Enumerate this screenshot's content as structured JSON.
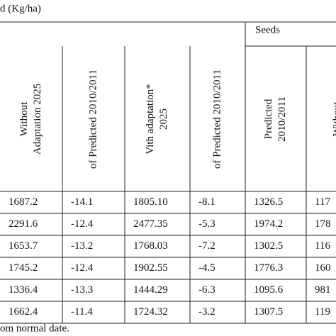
{
  "header": {
    "title": "d (Kg/ha)",
    "group": "Seeds"
  },
  "table": {
    "columns": [
      [
        "Without",
        "Adaptation 2025"
      ],
      [
        "of Predicted 2010/2011"
      ],
      [
        "Vith adaptation*",
        "2025"
      ],
      [
        "of Predicted 2010/2011"
      ],
      [
        "Predicted",
        "2010/2011"
      ],
      [
        "Without"
      ]
    ],
    "rows": [
      [
        "1687.2",
        "-14.1",
        "1805.10",
        "-8.1",
        "1326.5",
        "117"
      ],
      [
        "2291.6",
        "-12.4",
        "2477.35",
        "-5.3",
        "1974.2",
        "178"
      ],
      [
        "1653.7",
        "-13.2",
        "1768.03",
        "-7.2",
        "1302.5",
        "116"
      ],
      [
        "1745.2",
        "-12.4",
        "1902.55",
        "-4.5",
        "1776.3",
        "160"
      ],
      [
        "1336.4",
        "-13.3",
        "1444.29",
        "-6.3",
        "1095.6",
        "981"
      ],
      [
        "1662.4",
        "-11.4",
        "1724.32",
        "-3.2",
        "1307.5",
        "119"
      ]
    ]
  },
  "footnote": "om normal date."
}
